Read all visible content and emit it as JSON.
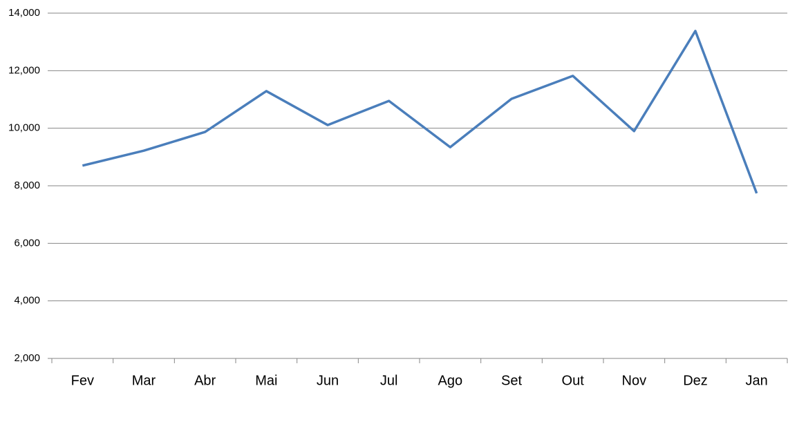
{
  "chart_data": {
    "type": "line",
    "categories": [
      "Fev",
      "Mar",
      "Abr",
      "Mai",
      "Jun",
      "Jul",
      "Ago",
      "Set",
      "Out",
      "Nov",
      "Dez",
      "Jan"
    ],
    "series": [
      {
        "color": "#4a7ebb",
        "values": [
          8700,
          9220,
          9870,
          11290,
          10110,
          10950,
          9340,
          11020,
          11820,
          9900,
          13380,
          7740
        ]
      }
    ],
    "ylim": [
      2000,
      14000
    ],
    "yticks": [
      {
        "value": 2000,
        "label": "2,000"
      },
      {
        "value": 4000,
        "label": "4,000"
      },
      {
        "value": 6000,
        "label": "6,000"
      },
      {
        "value": 8000,
        "label": "8,000"
      },
      {
        "value": 10000,
        "label": "10,000"
      },
      {
        "value": 12000,
        "label": "12,000"
      },
      {
        "value": 14000,
        "label": "14,000"
      }
    ],
    "grid": true
  }
}
